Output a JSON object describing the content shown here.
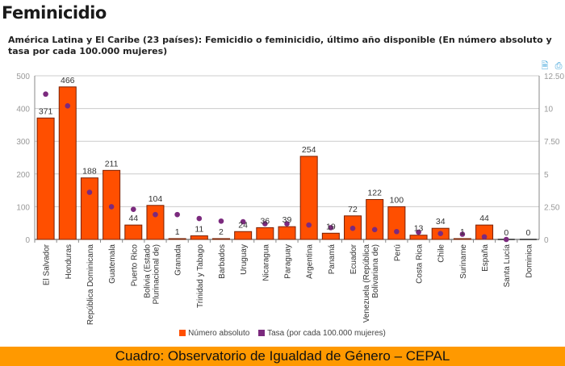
{
  "header": {
    "title": "Feminicidio",
    "subtitle": "América Latina y El Caribe (23 países): Femicidio o feminicidio, último año disponible (En número absoluto y tasa por cada 100.000 mujeres)"
  },
  "toolbar": {
    "icons": [
      "download-icon",
      "print-icon"
    ]
  },
  "footer": {
    "text": "Cuadro: Observatorio de Igualdad de Género – CEPAL"
  },
  "colors": {
    "bar": "#ff4f00",
    "bar_border": "#7a2000",
    "dot": "#7b2a7e",
    "footer": "#ff9900"
  },
  "chart_data": {
    "type": "bar",
    "title": "América Latina y El Caribe (23 países): Femicidio o feminicidio, último año disponible (En número absoluto y tasa por cada 100.000 mujeres)",
    "categories": [
      "El Salvador",
      "Honduras",
      "República Dominicana",
      "Guatemala",
      "Puerto Rico",
      "Bolivia (Estado Plurinacional de)",
      "Granada",
      "Trinidad y Tabago",
      "Barbados",
      "Uruguay",
      "Nicaragua",
      "Paraguay",
      "Argentina",
      "Panamá",
      "Ecuador",
      "Venezuela (República Bolivariana de)",
      "Perú",
      "Costa Rica",
      "Chile",
      "Suriname",
      "España",
      "Santa Lucía",
      "Dominica"
    ],
    "category_lines": [
      [
        "El Salvador"
      ],
      [
        "Honduras"
      ],
      [
        "República Dominicana"
      ],
      [
        "Guatemala"
      ],
      [
        "Puerto Rico"
      ],
      [
        "Bolivia (Estado",
        "Plurinacional de)"
      ],
      [
        "Granada"
      ],
      [
        "Trinidad y Tabago"
      ],
      [
        "Barbados"
      ],
      [
        "Uruguay"
      ],
      [
        "Nicaragua"
      ],
      [
        "Paraguay"
      ],
      [
        "Argentina"
      ],
      [
        "Panamá"
      ],
      [
        "Ecuador"
      ],
      [
        "Venezuela (República",
        "Bolivariana de)"
      ],
      [
        "Perú"
      ],
      [
        "Costa Rica"
      ],
      [
        "Chile"
      ],
      [
        "Suriname"
      ],
      [
        "España"
      ],
      [
        "Santa Lucía"
      ],
      [
        "Dominica"
      ]
    ],
    "series": [
      {
        "name": "Número absoluto",
        "type": "bar",
        "axis": "left",
        "values": [
          371,
          466,
          188,
          211,
          44,
          104,
          1,
          11,
          2,
          24,
          36,
          39,
          254,
          19,
          72,
          122,
          100,
          13,
          34,
          1,
          44,
          0,
          0
        ],
        "labels": [
          "371",
          "466",
          "188",
          "211",
          "44",
          "104",
          "1",
          "11",
          "2",
          "24",
          "36",
          "39",
          "254",
          "19",
          "72",
          "122",
          "100",
          "13",
          "34",
          "1",
          "44",
          "0",
          "0"
        ]
      },
      {
        "name": "Tasa (por cada 100.000 mujeres)",
        "type": "scatter",
        "axis": "right",
        "values": [
          11.1,
          10.2,
          3.6,
          2.5,
          2.3,
          1.9,
          1.9,
          1.6,
          1.4,
          1.35,
          1.2,
          1.2,
          1.1,
          0.9,
          0.85,
          0.75,
          0.6,
          0.55,
          0.45,
          0.4,
          0.2,
          0.0,
          null
        ]
      }
    ],
    "yleft": {
      "ylim": [
        0,
        500
      ],
      "ticks": [
        "0",
        "100",
        "200",
        "300",
        "400",
        "500"
      ]
    },
    "yright": {
      "ylim": [
        0,
        12.5
      ],
      "ticks": [
        "0",
        "2.50",
        "5",
        "7.50",
        "10",
        "12.50"
      ]
    },
    "grid": true,
    "legend": "bottom"
  }
}
